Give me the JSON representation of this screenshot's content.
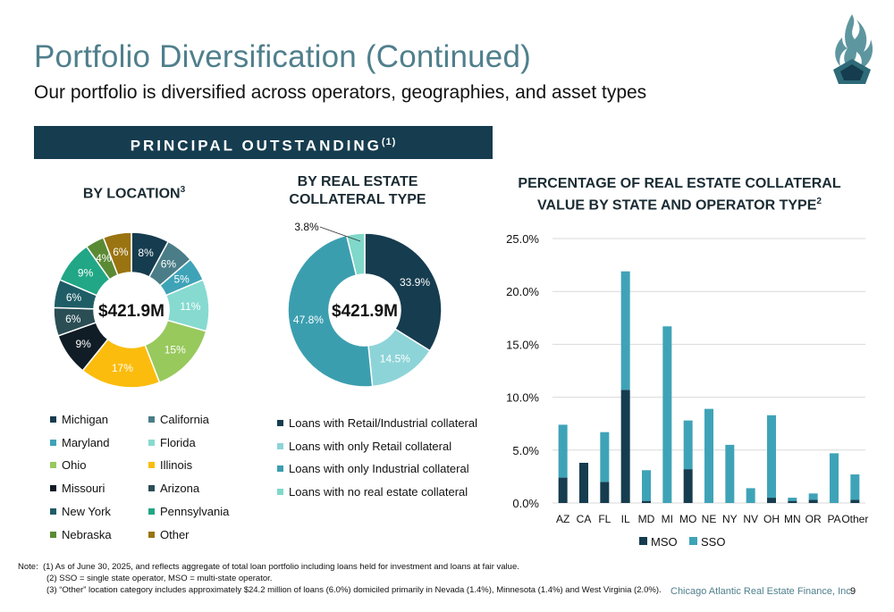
{
  "header": {
    "title": "Portfolio Diversification (Continued)",
    "subtitle": "Our portfolio is diversified across operators, geographies, and asset types"
  },
  "banner": {
    "text": "PRINCIPAL OUTSTANDING",
    "sup": "(1)"
  },
  "colors": {
    "accent": "#4f7f8c",
    "banner": "#163c4f",
    "mso": "#163c4f",
    "sso": "#3fa3b8"
  },
  "logo_icon": "flame-crest-icon",
  "chart_data": [
    {
      "type": "pie",
      "title": "BY LOCATION",
      "title_sup": "3",
      "center_label": "$421.9M",
      "slices": [
        {
          "name": "Michigan",
          "value": 8,
          "label": "8%",
          "color": "#163c4f",
          "label_color": "#ffffff"
        },
        {
          "name": "California",
          "value": 6,
          "label": "6%",
          "color": "#4a7d87",
          "label_color": "#ffffff"
        },
        {
          "name": "Maryland",
          "value": 5,
          "label": "5%",
          "color": "#3fa3b8",
          "label_color": "#ffffff"
        },
        {
          "name": "Florida",
          "value": 11,
          "label": "11%",
          "color": "#86dad0",
          "label_color": "#ffffff"
        },
        {
          "name": "Ohio",
          "value": 15,
          "label": "15%",
          "color": "#98c95c",
          "label_color": "#ffffff"
        },
        {
          "name": "Illinois",
          "value": 17,
          "label": "17%",
          "color": "#fbbc0d",
          "label_color": "#ffffff"
        },
        {
          "name": "Missouri",
          "value": 9,
          "label": "9%",
          "color": "#101d26",
          "label_color": "#ffffff"
        },
        {
          "name": "Arizona",
          "value": 6,
          "label": "6%",
          "color": "#2b4e55",
          "label_color": "#ffffff"
        },
        {
          "name": "New York",
          "value": 6,
          "label": "6%",
          "color": "#1f5d66",
          "label_color": "#ffffff"
        },
        {
          "name": "Pennsylvania",
          "value": 9,
          "label": "9%",
          "color": "#21a785",
          "label_color": "#ffffff"
        },
        {
          "name": "Nebraska",
          "value": 4,
          "label": "4%",
          "color": "#5b8a35",
          "label_color": "#ffffff"
        },
        {
          "name": "Other",
          "value": 6,
          "label": "6%",
          "color": "#9a7411",
          "label_color": "#ffffff"
        }
      ]
    },
    {
      "type": "pie",
      "title": "BY REAL ESTATE COLLATERAL TYPE",
      "center_label": "$421.9M",
      "slices": [
        {
          "name": "Loans with Retail/Industrial collateral",
          "value": 33.9,
          "label": "33.9%",
          "color": "#163c4f",
          "label_color": "#ffffff"
        },
        {
          "name": "Loans with only Retail collateral",
          "value": 14.5,
          "label": "14.5%",
          "color": "#8dd4d8",
          "label_color": "#ffffff"
        },
        {
          "name": "Loans with only Industrial collateral",
          "value": 47.8,
          "label": "47.8%",
          "color": "#3b9eaf",
          "label_color": "#ffffff"
        },
        {
          "name": "Loans with no real estate collateral",
          "value": 3.8,
          "label": "3.8%",
          "color": "#7fd8c9",
          "label_color": "#111111"
        }
      ]
    },
    {
      "type": "bar",
      "stacked": true,
      "title": "PERCENTAGE OF REAL ESTATE COLLATERAL VALUE BY STATE AND OPERATOR TYPE",
      "title_sup": "2",
      "categories": [
        "AZ",
        "CA",
        "FL",
        "IL",
        "MD",
        "MI",
        "MO",
        "NE",
        "NY",
        "NV",
        "OH",
        "MN",
        "OR",
        "PA",
        "Other"
      ],
      "series": [
        {
          "name": "MSO",
          "color": "#163c4f",
          "values": [
            2.4,
            3.8,
            2.0,
            10.7,
            0.2,
            0.0,
            3.2,
            0.0,
            0.0,
            0.0,
            0.5,
            0.2,
            0.3,
            0.0,
            0.3
          ]
        },
        {
          "name": "SSO",
          "color": "#3fa3b8",
          "values": [
            5.0,
            0.0,
            4.7,
            11.2,
            2.9,
            16.7,
            4.6,
            8.9,
            5.5,
            1.4,
            7.8,
            0.3,
            0.6,
            4.7,
            2.4
          ]
        }
      ],
      "ylim": [
        0,
        25
      ],
      "yticks": [
        "0.0%",
        "5.0%",
        "10.0%",
        "15.0%",
        "20.0%",
        "25.0%"
      ],
      "grid": true,
      "legend_position": "bottom"
    }
  ],
  "notes": {
    "prefix": "Note:",
    "lines": [
      "(1) As of June 30, 2025, and reflects aggregate of total loan portfolio including loans held for investment and loans at fair value.",
      "(2) SSO = single state operator, MSO = multi-state operator.",
      "(3) “Other” location category includes approximately $24.2 million of loans (6.0%) domiciled primarily in Nevada (1.4%), Minnesota (1.4%) and West Virginia (2.0%)."
    ]
  },
  "footer": {
    "company": "Chicago Atlantic Real Estate Finance, Inc",
    "page": "9"
  }
}
